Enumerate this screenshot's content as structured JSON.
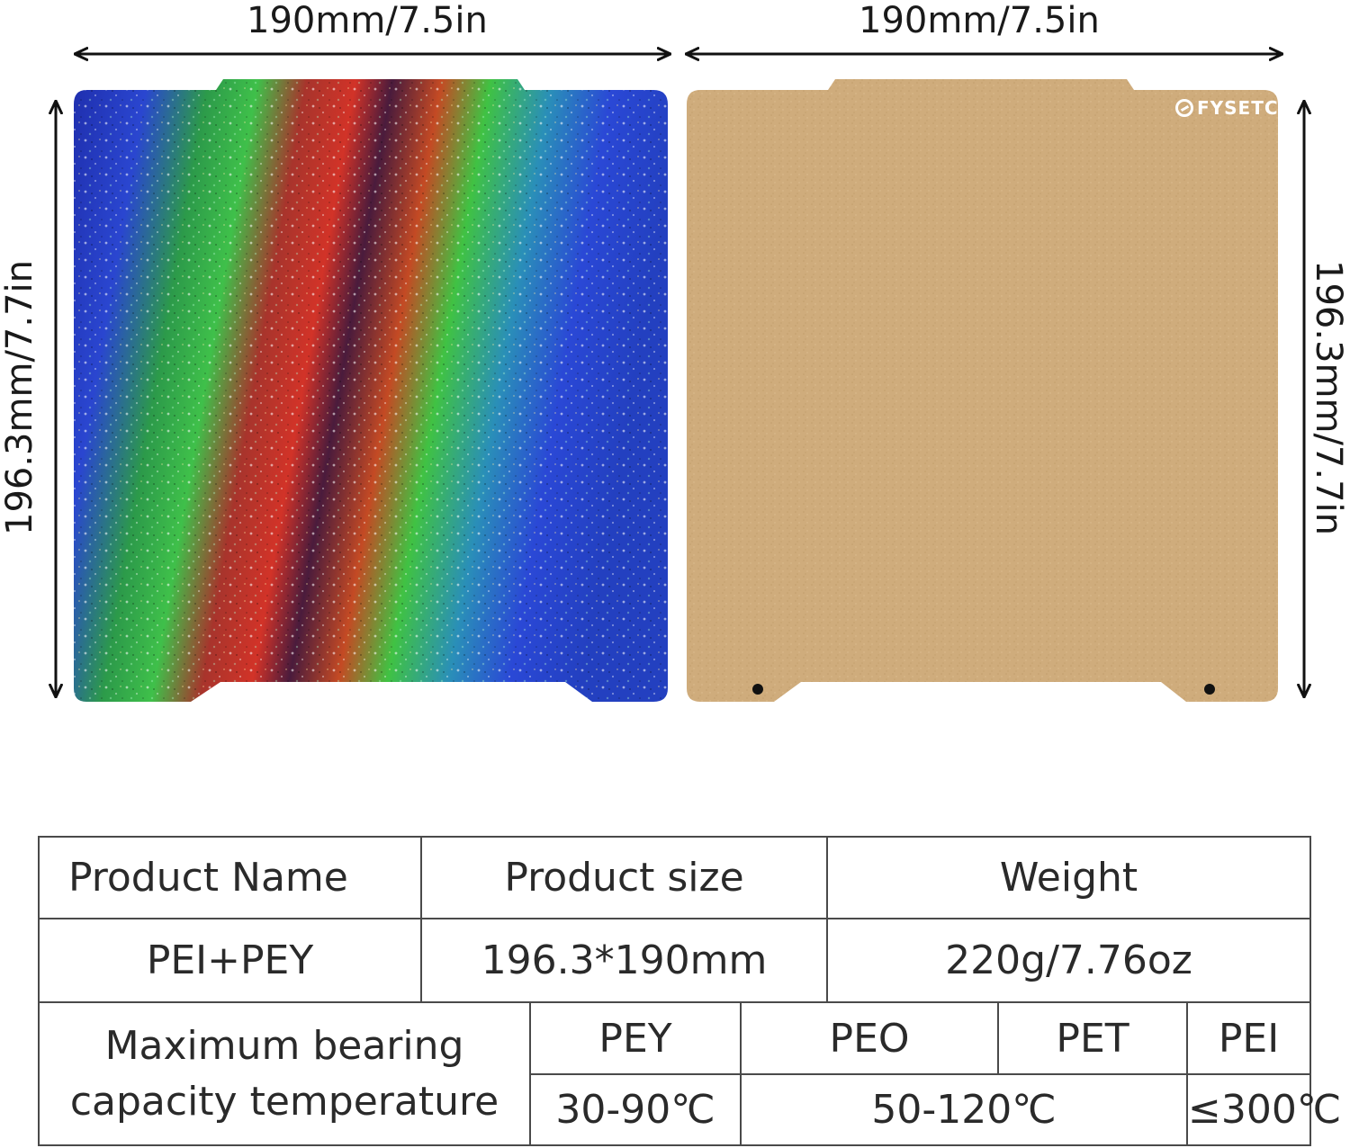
{
  "dimensions": {
    "top_left": "190mm/7.5in",
    "top_right": "190mm/7.5in",
    "side_left": "196.3mm/7.7in",
    "side_right": "196.3mm/7.7in"
  },
  "plates": {
    "left": {
      "surface": "holographic glitter",
      "colors": [
        "#2538c4",
        "#2fae3a",
        "#c92d2d",
        "#111a4a"
      ]
    },
    "right": {
      "surface": "textured gold",
      "color": "#cfad7d"
    }
  },
  "logo": {
    "text": "FYSETC"
  },
  "spec_table": {
    "headers": {
      "product_name": "Product Name",
      "product_size": "Product size",
      "weight": "Weight"
    },
    "values": {
      "product_name": "PEI+PEY",
      "product_size": "196.3*190mm",
      "weight": "220g/7.76oz"
    },
    "temperature": {
      "label_line1": "Maximum bearing",
      "label_line2": "capacity temperature",
      "materials": [
        "PEY",
        "PEO",
        "PET",
        "PEI"
      ],
      "ranges": [
        "30-90℃",
        "50-120℃",
        "≤300℃"
      ]
    }
  }
}
